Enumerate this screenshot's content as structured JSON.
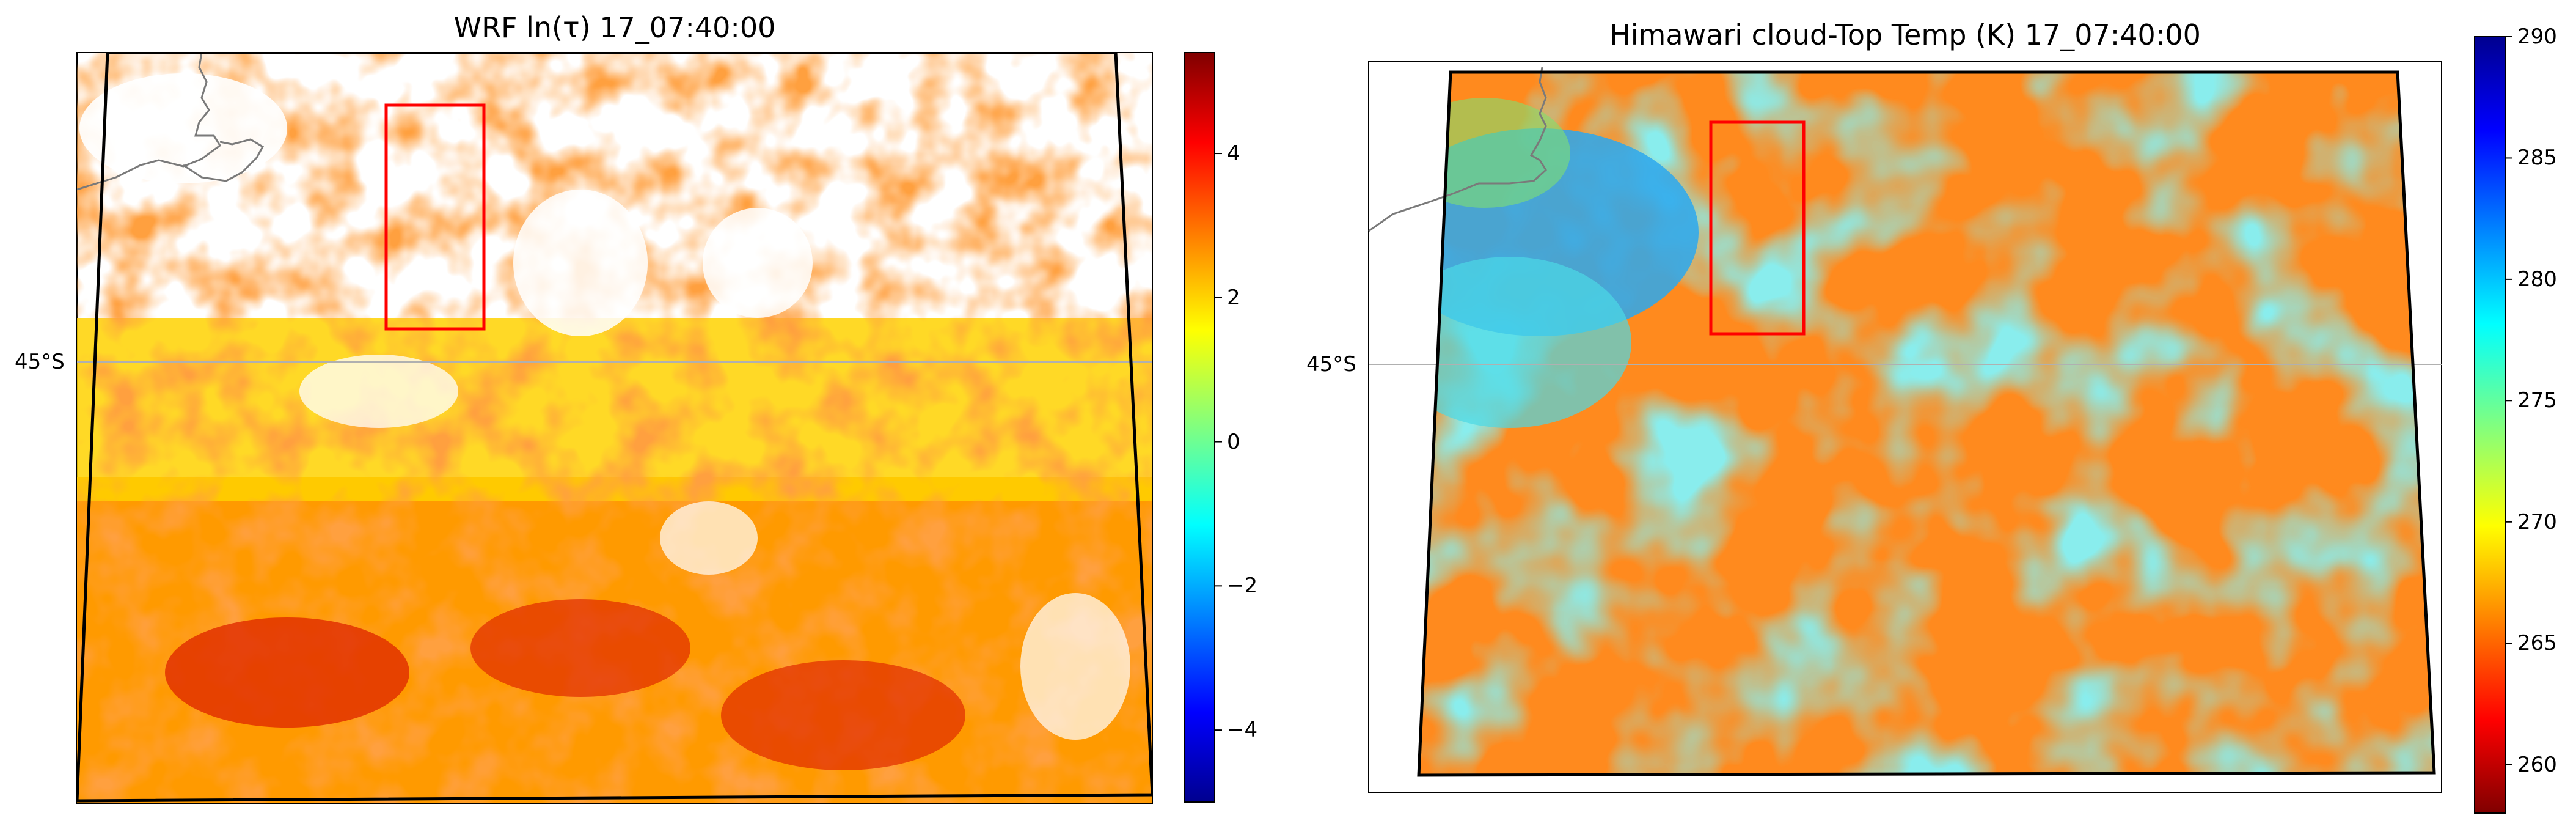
{
  "panels": [
    {
      "title": "WRF ln(τ) 17_07:40:00",
      "lat_label": "45°S",
      "colorbar": {
        "ticks": [
          "4",
          "2",
          "0",
          "−2",
          "−4"
        ],
        "values": [
          4,
          2,
          0,
          -2,
          -4
        ],
        "range": [
          -5,
          5.4
        ],
        "colormap": "jet"
      }
    },
    {
      "title": "Himawari cloud-Top Temp (K) 17_07:40:00",
      "lat_label": "45°S",
      "colorbar": {
        "ticks": [
          "290",
          "285",
          "280",
          "275",
          "270",
          "265",
          "260"
        ],
        "values": [
          290,
          285,
          280,
          275,
          270,
          265,
          260
        ],
        "range": [
          258,
          290
        ],
        "colormap": "jet_r"
      }
    }
  ],
  "colors": {
    "highlight_box": "#ff0000",
    "domain_outline": "#000000",
    "coastline": "#7a7a7a",
    "latitude_line": "#b0b0b0"
  }
}
